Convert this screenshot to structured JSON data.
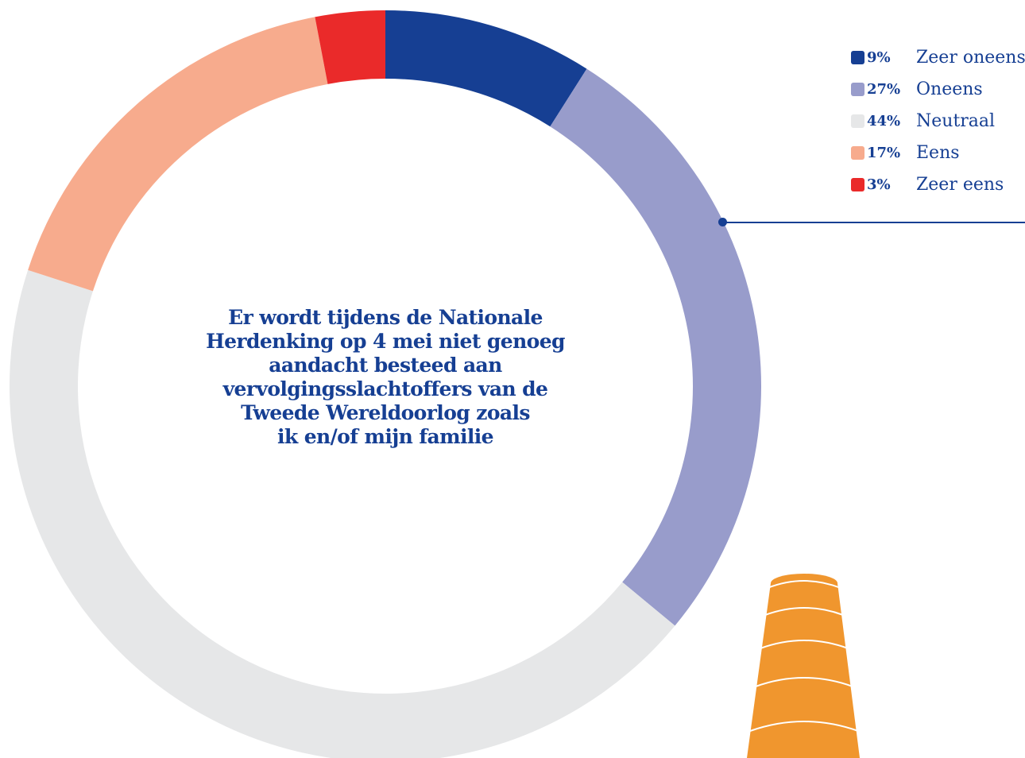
{
  "chart_data": {
    "type": "pie",
    "title": "Er wordt tijdens de Nationale Herdenking op 4 mei niet genoeg aandacht besteed aan vervolgingsslachtoffers van de Tweede Wereldoorlog zoals ik en/of mijn familie",
    "title_lines": [
      "Er wordt tijdens de Nationale",
      "Herdenking op 4 mei niet genoeg",
      "aandacht besteed aan",
      "vervolgingsslachtoffers van de",
      "Tweede Wereldoorlog zoals",
      "ik en/of mijn familie"
    ],
    "categories": [
      "Zeer oneens",
      "Oneens",
      "Neutraal",
      "Eens",
      "Zeer eens"
    ],
    "values": [
      9,
      27,
      44,
      17,
      3
    ],
    "value_labels": [
      "9%",
      "27%",
      "44%",
      "17%",
      "3%"
    ],
    "colors": [
      "#163f93",
      "#989ccb",
      "#e6e7e8",
      "#f7ab8d",
      "#ea2a2a"
    ],
    "legend_position": "top-right",
    "text_color": "#163f93"
  },
  "decoration": {
    "candle_color": "#f0962e"
  }
}
